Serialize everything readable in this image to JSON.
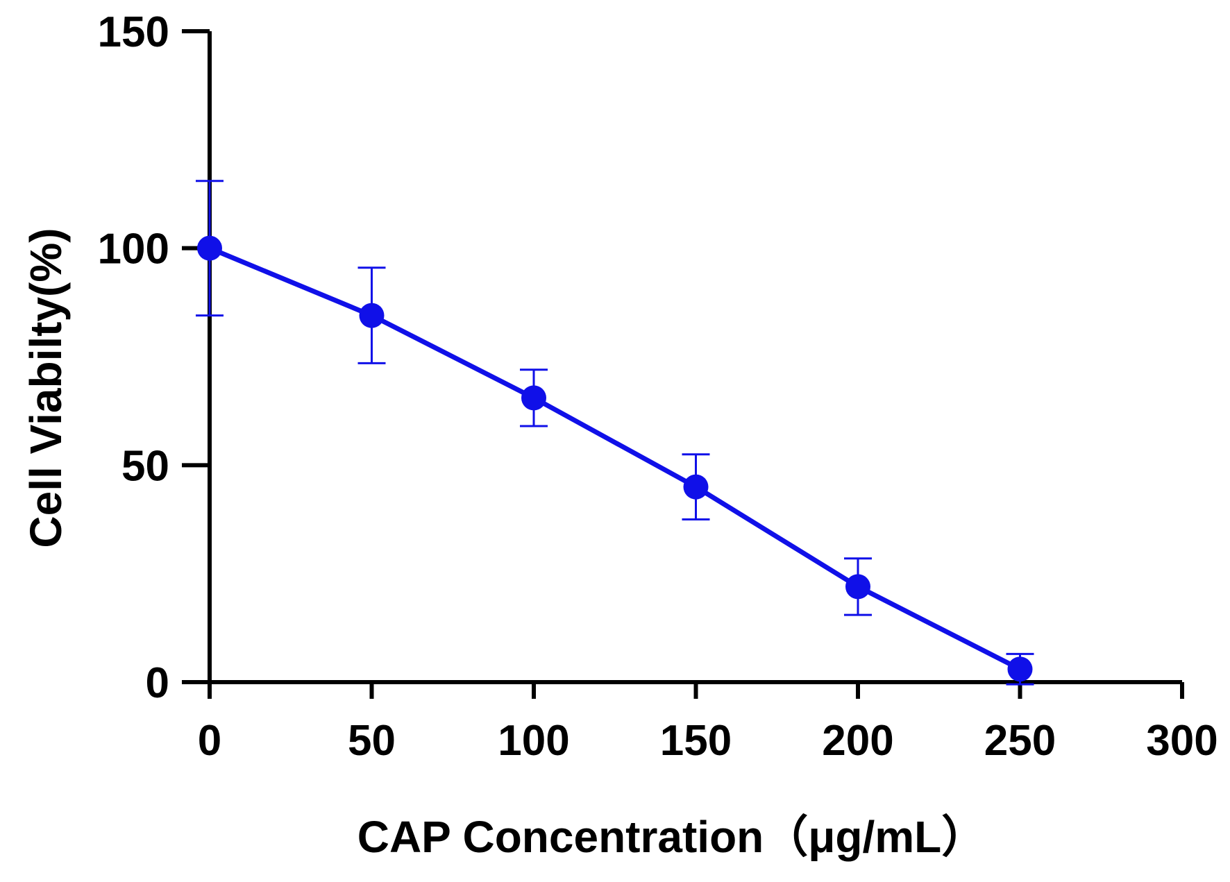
{
  "chart_data": {
    "type": "line",
    "title": "",
    "xlabel": "CAP Concentration（μg/mL）",
    "ylabel": "Cell Viabilty(%)",
    "xlim": [
      0,
      300
    ],
    "ylim": [
      0,
      150
    ],
    "xticks": [
      0,
      50,
      100,
      150,
      200,
      250,
      300
    ],
    "yticks": [
      0,
      50,
      100,
      150
    ],
    "grid": false,
    "legend": "none",
    "series": [
      {
        "name": "Cell Viability",
        "color": "#1010e8",
        "x": [
          0,
          50,
          100,
          150,
          200,
          250
        ],
        "y": [
          100,
          84.5,
          65.5,
          45,
          22,
          3
        ],
        "error": [
          15.5,
          11,
          6.5,
          7.5,
          6.5,
          3.5
        ]
      }
    ]
  }
}
